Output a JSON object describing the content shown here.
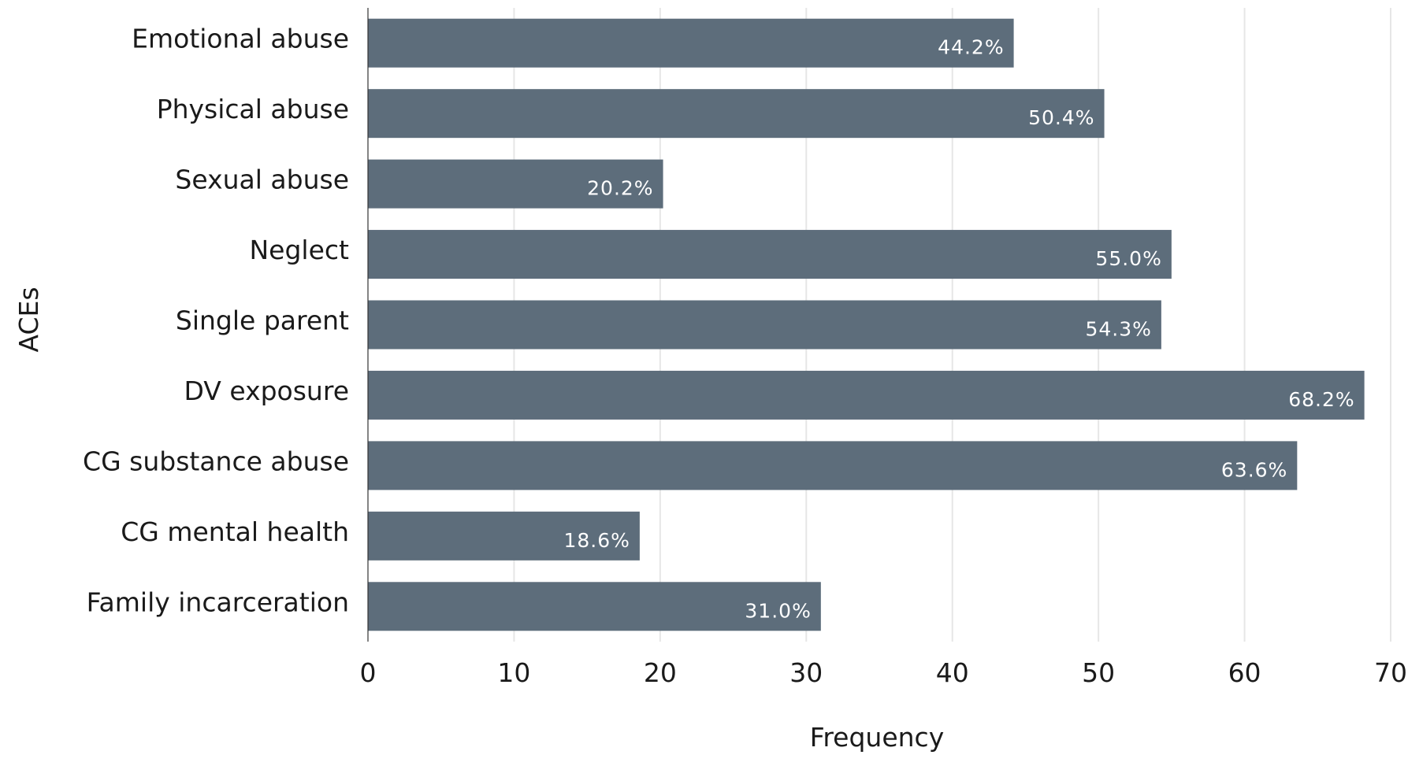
{
  "chart_data": {
    "type": "bar",
    "orientation": "horizontal",
    "title": "",
    "xlabel": "Frequency",
    "ylabel": "ACEs",
    "xlim": [
      0,
      70
    ],
    "xticks": [
      0,
      10,
      20,
      30,
      40,
      50,
      60,
      70
    ],
    "grid": true,
    "categories": [
      "Emotional abuse",
      "Physical abuse",
      "Sexual abuse",
      "Neglect",
      "Single parent",
      "DV exposure",
      "CG substance abuse",
      "CG mental health",
      "Family incarceration"
    ],
    "values": [
      44.2,
      50.4,
      20.2,
      55.0,
      54.3,
      68.2,
      63.6,
      18.6,
      31.0
    ],
    "data_labels": [
      "44.2%",
      "50.4%",
      "20.2%",
      "55.0%",
      "54.3%",
      "68.2%",
      "63.6%",
      "18.6%",
      "31.0%"
    ],
    "bar_color": "#5d6d7b"
  }
}
